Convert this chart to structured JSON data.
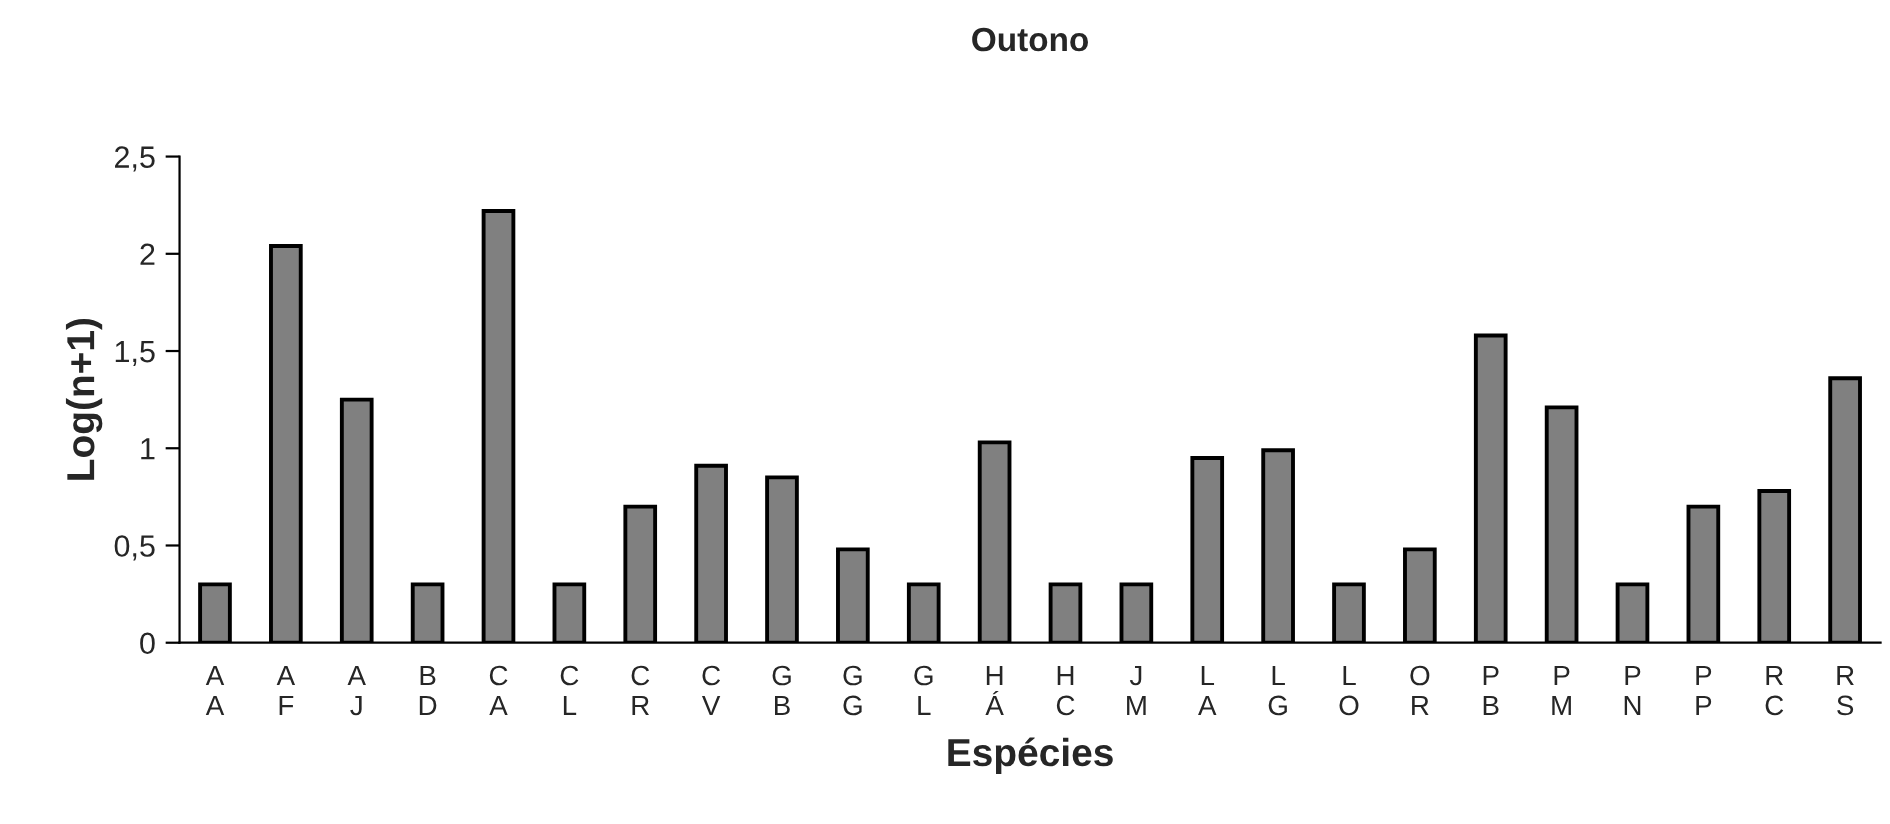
{
  "chart_data": {
    "type": "bar",
    "title": "Outono",
    "xlabel": "Espécies",
    "ylabel": "Log(n+1)",
    "categories": [
      "A\nA",
      "A\nF",
      "A\nJ",
      "B\nD",
      "C\nA",
      "C\nL",
      "C\nR",
      "C\nV",
      "G\nB",
      "G\nG",
      "G\nL",
      "H\nÁ",
      "H\nC",
      "J\nM",
      "L\nA",
      "L\nG",
      "L\nO",
      "O\nR",
      "P\nB",
      "P\nM",
      "P\nN",
      "P\nP",
      "R\nC",
      "R\nS"
    ],
    "values": [
      0.3,
      2.04,
      1.25,
      0.3,
      2.22,
      0.3,
      0.7,
      0.91,
      0.85,
      0.48,
      0.3,
      1.03,
      0.3,
      0.3,
      0.95,
      0.99,
      0.3,
      0.48,
      1.58,
      1.21,
      0.3,
      0.7,
      0.78,
      1.36
    ],
    "color": "#808080",
    "ylim": [
      0,
      2.5
    ],
    "yticks": [
      0,
      {
        "value": 0.5,
        "label": "0,5"
      },
      1,
      {
        "value": 1.5,
        "label": "1,5"
      },
      2,
      {
        "value": 2.5,
        "label": "2,5"
      }
    ],
    "grid": false
  }
}
